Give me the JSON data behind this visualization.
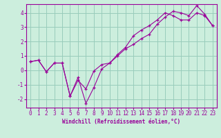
{
  "xlabel": "Windchill (Refroidissement éolien,°C)",
  "ylabel": "",
  "background_color": "#cceedd",
  "line_color": "#990099",
  "grid_color": "#99ccbb",
  "xlim": [
    -0.5,
    23.5
  ],
  "ylim": [
    -2.6,
    4.6
  ],
  "xticks": [
    0,
    1,
    2,
    3,
    4,
    5,
    6,
    7,
    8,
    9,
    10,
    11,
    12,
    13,
    14,
    15,
    16,
    17,
    18,
    19,
    20,
    21,
    22,
    23
  ],
  "yticks": [
    -2,
    -1,
    0,
    1,
    2,
    3,
    4
  ],
  "line1_x": [
    0,
    1,
    2,
    3,
    4,
    5,
    6,
    7,
    8,
    9,
    10,
    11,
    12,
    13,
    14,
    15,
    16,
    17,
    18,
    19,
    20,
    21,
    22,
    23
  ],
  "line1_y": [
    0.6,
    0.7,
    -0.1,
    0.5,
    0.5,
    -1.8,
    -0.7,
    -1.3,
    -0.05,
    0.4,
    0.5,
    1.0,
    1.5,
    1.8,
    2.2,
    2.5,
    3.2,
    3.7,
    4.1,
    4.0,
    3.8,
    4.5,
    3.9,
    3.1
  ],
  "line2_x": [
    0,
    1,
    2,
    3,
    4,
    5,
    6,
    7,
    8,
    9,
    10,
    11,
    12,
    13,
    14,
    15,
    16,
    17,
    18,
    19,
    20,
    21,
    22,
    23
  ],
  "line2_y": [
    0.6,
    0.7,
    -0.1,
    0.5,
    0.5,
    -1.8,
    -0.5,
    -2.3,
    -1.2,
    0.1,
    0.5,
    1.1,
    1.6,
    2.4,
    2.8,
    3.1,
    3.5,
    4.0,
    3.8,
    3.5,
    3.5,
    4.0,
    3.8,
    3.1
  ],
  "tick_fontsize": 5.5,
  "xlabel_fontsize": 5.5
}
